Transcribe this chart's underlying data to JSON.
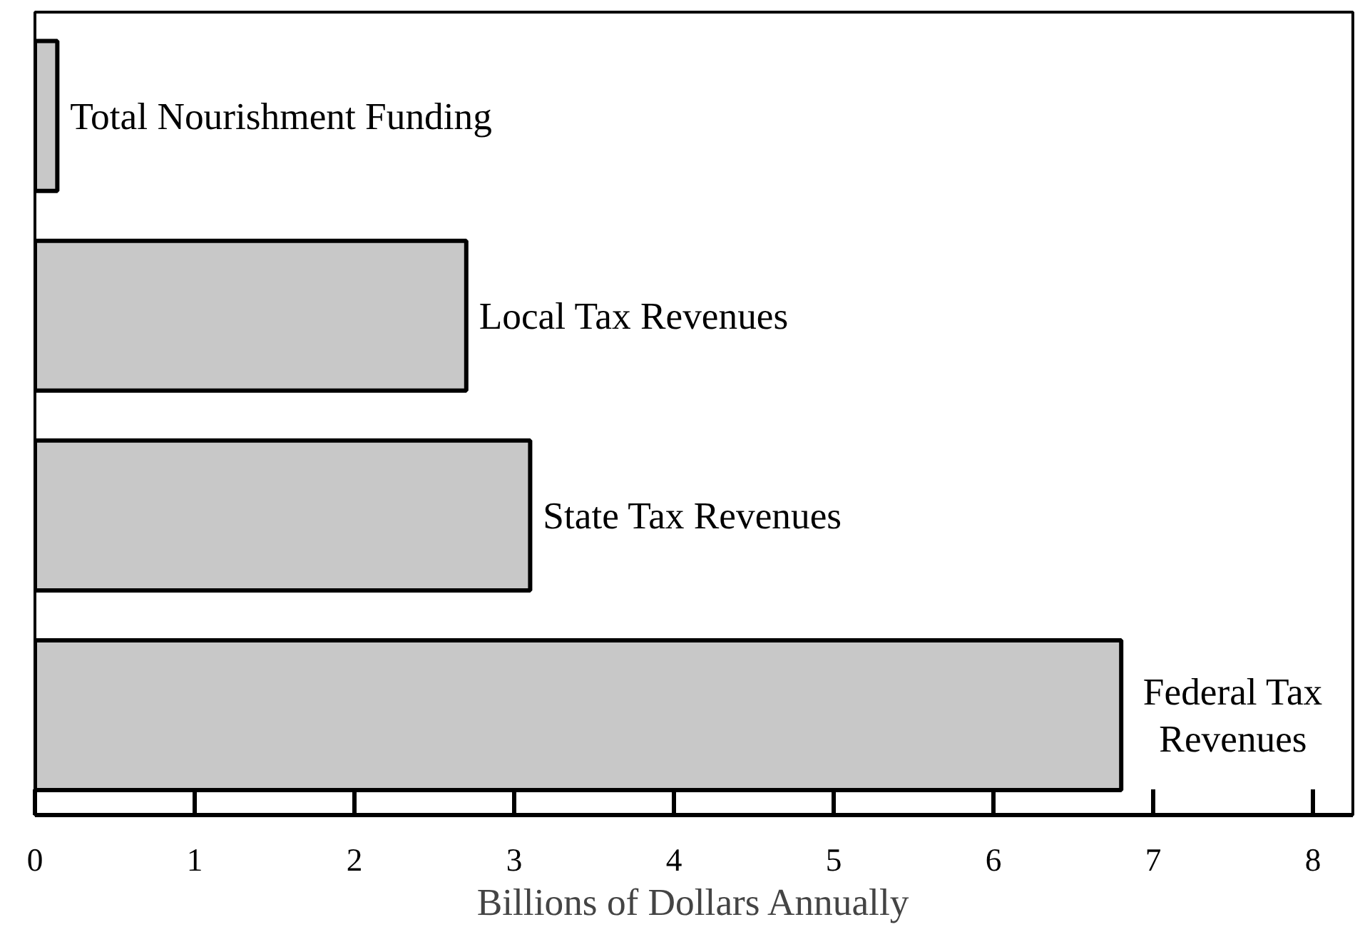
{
  "chart_data": {
    "type": "bar",
    "orientation": "horizontal",
    "xlabel": "Billions of Dollars Annually",
    "categories": [
      "Total Nourishment Funding",
      "Local Tax Revenues",
      "State Tax Revenues",
      "Federal Tax\nRevenues"
    ],
    "values": [
      0.14,
      2.7,
      3.1,
      6.8
    ],
    "color": "#c8c8c8",
    "xlim": [
      0,
      8.25
    ],
    "xticks": [
      0,
      1,
      2,
      3,
      4,
      5,
      6,
      7,
      8
    ],
    "grid": false,
    "tick_labels": "x"
  }
}
